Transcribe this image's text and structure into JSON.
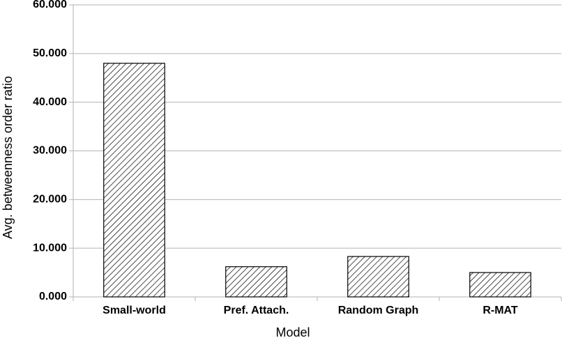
{
  "chart_data": {
    "type": "bar",
    "x_label": "Model",
    "y_label": "Avg. betweenness order ratio",
    "categories": [
      "Small-world",
      "Pref. Attach.",
      "Random Graph",
      "R-MAT"
    ],
    "values": [
      48.0,
      6.2,
      8.3,
      5.0
    ],
    "color": "#000000",
    "ylim": [
      0,
      60
    ],
    "yticks": [
      {
        "value": 0,
        "label": "0.000"
      },
      {
        "value": 10,
        "label": "10.000"
      },
      {
        "value": 20,
        "label": "20.000"
      },
      {
        "value": 30,
        "label": "30.000"
      },
      {
        "value": 40,
        "label": "40.000"
      },
      {
        "value": 50,
        "label": "50.000"
      },
      {
        "value": 60,
        "label": "60.000"
      }
    ],
    "grid": true
  }
}
